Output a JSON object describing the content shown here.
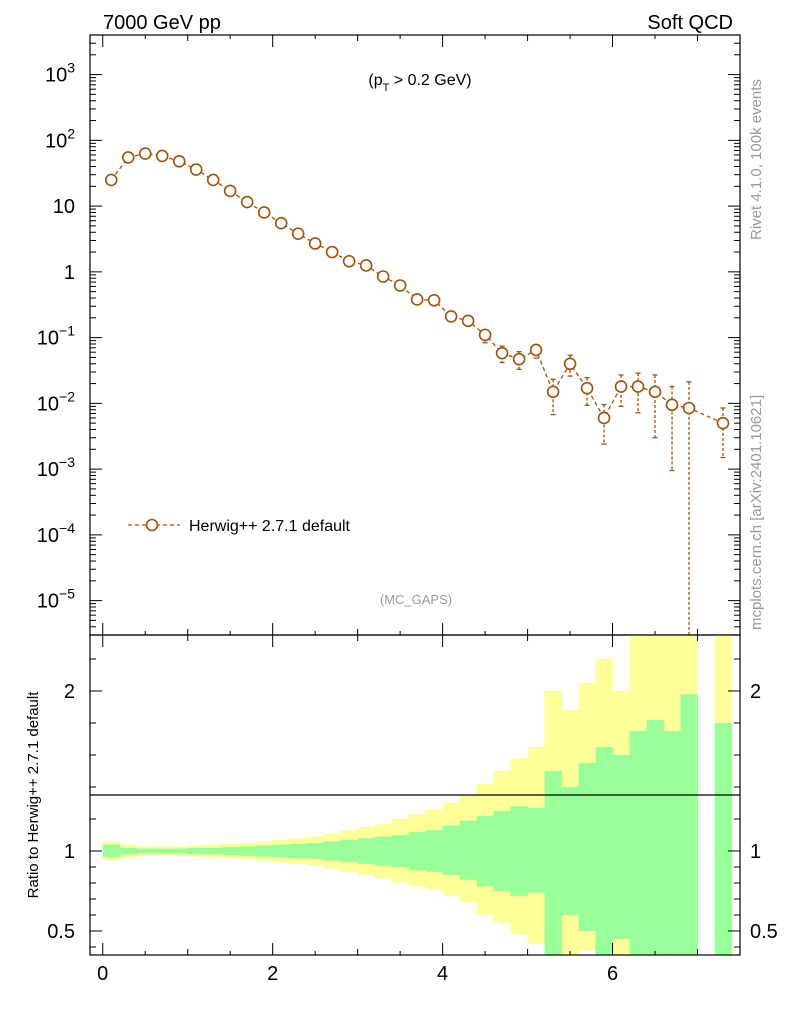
{
  "header": {
    "left_title": "7000 GeV pp",
    "right_title": "Soft QCD",
    "side_label_top": "Rivet 4.1.0,  100k events",
    "side_label_bottom": "mcplots.cern.ch [arXiv:2401.10621]"
  },
  "chart_data": {
    "type": "line",
    "annotation": "(p_T > 0.2 GeV)",
    "watermark": "(MC_GAPS)",
    "legend": {
      "label": "Herwig++ 2.7.1 default",
      "placement": "middle-left",
      "color": "#a0520a"
    },
    "main": {
      "yscale": "log",
      "ylim": [
        3e-06,
        4000
      ],
      "xlim": [
        -0.15,
        7.5
      ],
      "ytick_labels": [
        {
          "value": 1e-05,
          "base": "10",
          "exp": "−5"
        },
        {
          "value": 0.0001,
          "base": "10",
          "exp": "−4"
        },
        {
          "value": 0.001,
          "base": "10",
          "exp": "−3"
        },
        {
          "value": 0.01,
          "base": "10",
          "exp": "−2"
        },
        {
          "value": 0.1,
          "base": "10",
          "exp": "−1"
        },
        {
          "value": 1,
          "base": "1",
          "exp": ""
        },
        {
          "value": 10,
          "base": "10",
          "exp": ""
        },
        {
          "value": 100,
          "base": "10",
          "exp": "2"
        },
        {
          "value": 1000,
          "base": "10",
          "exp": "3"
        }
      ],
      "series": [
        {
          "name": "Herwig++ 2.7.1 default",
          "x": [
            0.1,
            0.3,
            0.5,
            0.7,
            0.9,
            1.1,
            1.3,
            1.5,
            1.7,
            1.9,
            2.1,
            2.3,
            2.5,
            2.7,
            2.9,
            3.1,
            3.3,
            3.5,
            3.7,
            3.9,
            4.1,
            4.3,
            4.5,
            4.7,
            4.9,
            5.1,
            5.3,
            5.5,
            5.7,
            5.9,
            6.1,
            6.3,
            6.5,
            6.7,
            6.9,
            7.3
          ],
          "y": [
            25,
            55,
            63,
            58,
            48,
            36,
            25,
            17,
            11.5,
            8,
            5.5,
            3.8,
            2.7,
            2.0,
            1.45,
            1.25,
            0.85,
            0.62,
            0.38,
            0.37,
            0.21,
            0.18,
            0.11,
            0.058,
            0.047,
            0.065,
            0.015,
            0.04,
            0.017,
            0.006,
            0.018,
            0.018,
            0.015,
            0.0095,
            0.0085,
            0.005
          ],
          "rel_err": [
            0.03,
            0.02,
            0.02,
            0.02,
            0.02,
            0.03,
            0.03,
            0.03,
            0.04,
            0.04,
            0.05,
            0.05,
            0.06,
            0.07,
            0.08,
            0.09,
            0.1,
            0.11,
            0.13,
            0.14,
            0.18,
            0.2,
            0.24,
            0.28,
            0.3,
            0.25,
            0.55,
            0.35,
            0.45,
            0.6,
            0.5,
            0.6,
            0.8,
            0.9,
            1.5,
            0.7
          ]
        }
      ]
    },
    "ratio": {
      "ylabel": "Ratio to Herwig++ 2.7.1 default",
      "ylim": [
        0.35,
        2.35
      ],
      "ytick_labels": [
        "0.5",
        "1",
        "2"
      ],
      "ytick_values": [
        0.5,
        1,
        2
      ],
      "xtick_labels": [
        "0",
        "2",
        "4",
        "6"
      ],
      "xtick_values": [
        0,
        2,
        4,
        6
      ],
      "bin_edges": [
        0,
        0.2,
        0.4,
        0.6,
        0.8,
        1.0,
        1.2,
        1.4,
        1.6,
        1.8,
        2.0,
        2.2,
        2.4,
        2.6,
        2.8,
        3.0,
        3.2,
        3.4,
        3.6,
        3.8,
        4.0,
        4.2,
        4.4,
        4.6,
        4.8,
        5.0,
        5.2,
        5.4,
        5.6,
        5.8,
        6.0,
        6.2,
        6.4,
        6.6,
        6.8,
        7.0,
        7.2,
        7.4
      ],
      "green_band": [
        [
          0.96,
          1.04
        ],
        [
          0.98,
          1.02
        ],
        [
          0.985,
          1.015
        ],
        [
          0.985,
          1.015
        ],
        [
          0.985,
          1.015
        ],
        [
          0.98,
          1.02
        ],
        [
          0.98,
          1.02
        ],
        [
          0.975,
          1.025
        ],
        [
          0.97,
          1.03
        ],
        [
          0.965,
          1.035
        ],
        [
          0.96,
          1.04
        ],
        [
          0.955,
          1.045
        ],
        [
          0.95,
          1.05
        ],
        [
          0.94,
          1.06
        ],
        [
          0.93,
          1.07
        ],
        [
          0.92,
          1.08
        ],
        [
          0.91,
          1.09
        ],
        [
          0.9,
          1.1
        ],
        [
          0.88,
          1.12
        ],
        [
          0.87,
          1.13
        ],
        [
          0.85,
          1.16
        ],
        [
          0.82,
          1.19
        ],
        [
          0.78,
          1.22
        ],
        [
          0.75,
          1.25
        ],
        [
          0.72,
          1.28
        ],
        [
          0.74,
          1.27
        ],
        [
          0.3,
          1.5
        ],
        [
          0.6,
          1.4
        ],
        [
          0.5,
          1.55
        ],
        [
          0.3,
          1.65
        ],
        [
          0.45,
          1.6
        ],
        [
          0.3,
          1.75
        ],
        [
          0.3,
          1.82
        ],
        [
          0.3,
          1.75
        ],
        [
          0.3,
          1.98
        ],
        null,
        [
          0.3,
          1.8
        ]
      ],
      "yellow_band": [
        [
          0.94,
          1.06
        ],
        [
          0.96,
          1.04
        ],
        [
          0.97,
          1.03
        ],
        [
          0.97,
          1.03
        ],
        [
          0.97,
          1.03
        ],
        [
          0.965,
          1.035
        ],
        [
          0.96,
          1.04
        ],
        [
          0.955,
          1.045
        ],
        [
          0.95,
          1.05
        ],
        [
          0.94,
          1.06
        ],
        [
          0.93,
          1.07
        ],
        [
          0.92,
          1.08
        ],
        [
          0.91,
          1.09
        ],
        [
          0.89,
          1.11
        ],
        [
          0.87,
          1.13
        ],
        [
          0.85,
          1.15
        ],
        [
          0.83,
          1.17
        ],
        [
          0.8,
          1.2
        ],
        [
          0.78,
          1.23
        ],
        [
          0.76,
          1.26
        ],
        [
          0.72,
          1.3
        ],
        [
          0.68,
          1.35
        ],
        [
          0.6,
          1.42
        ],
        [
          0.55,
          1.5
        ],
        [
          0.48,
          1.58
        ],
        [
          0.42,
          1.65
        ],
        [
          0.3,
          2.0
        ],
        [
          0.3,
          1.88
        ],
        [
          0.38,
          2.05
        ],
        [
          0.3,
          2.2
        ],
        [
          0.3,
          2.0
        ],
        [
          0.3,
          2.4
        ],
        [
          0.3,
          2.4
        ],
        [
          0.3,
          2.4
        ],
        [
          0.3,
          2.4
        ],
        null,
        [
          0.3,
          2.4
        ]
      ]
    }
  }
}
